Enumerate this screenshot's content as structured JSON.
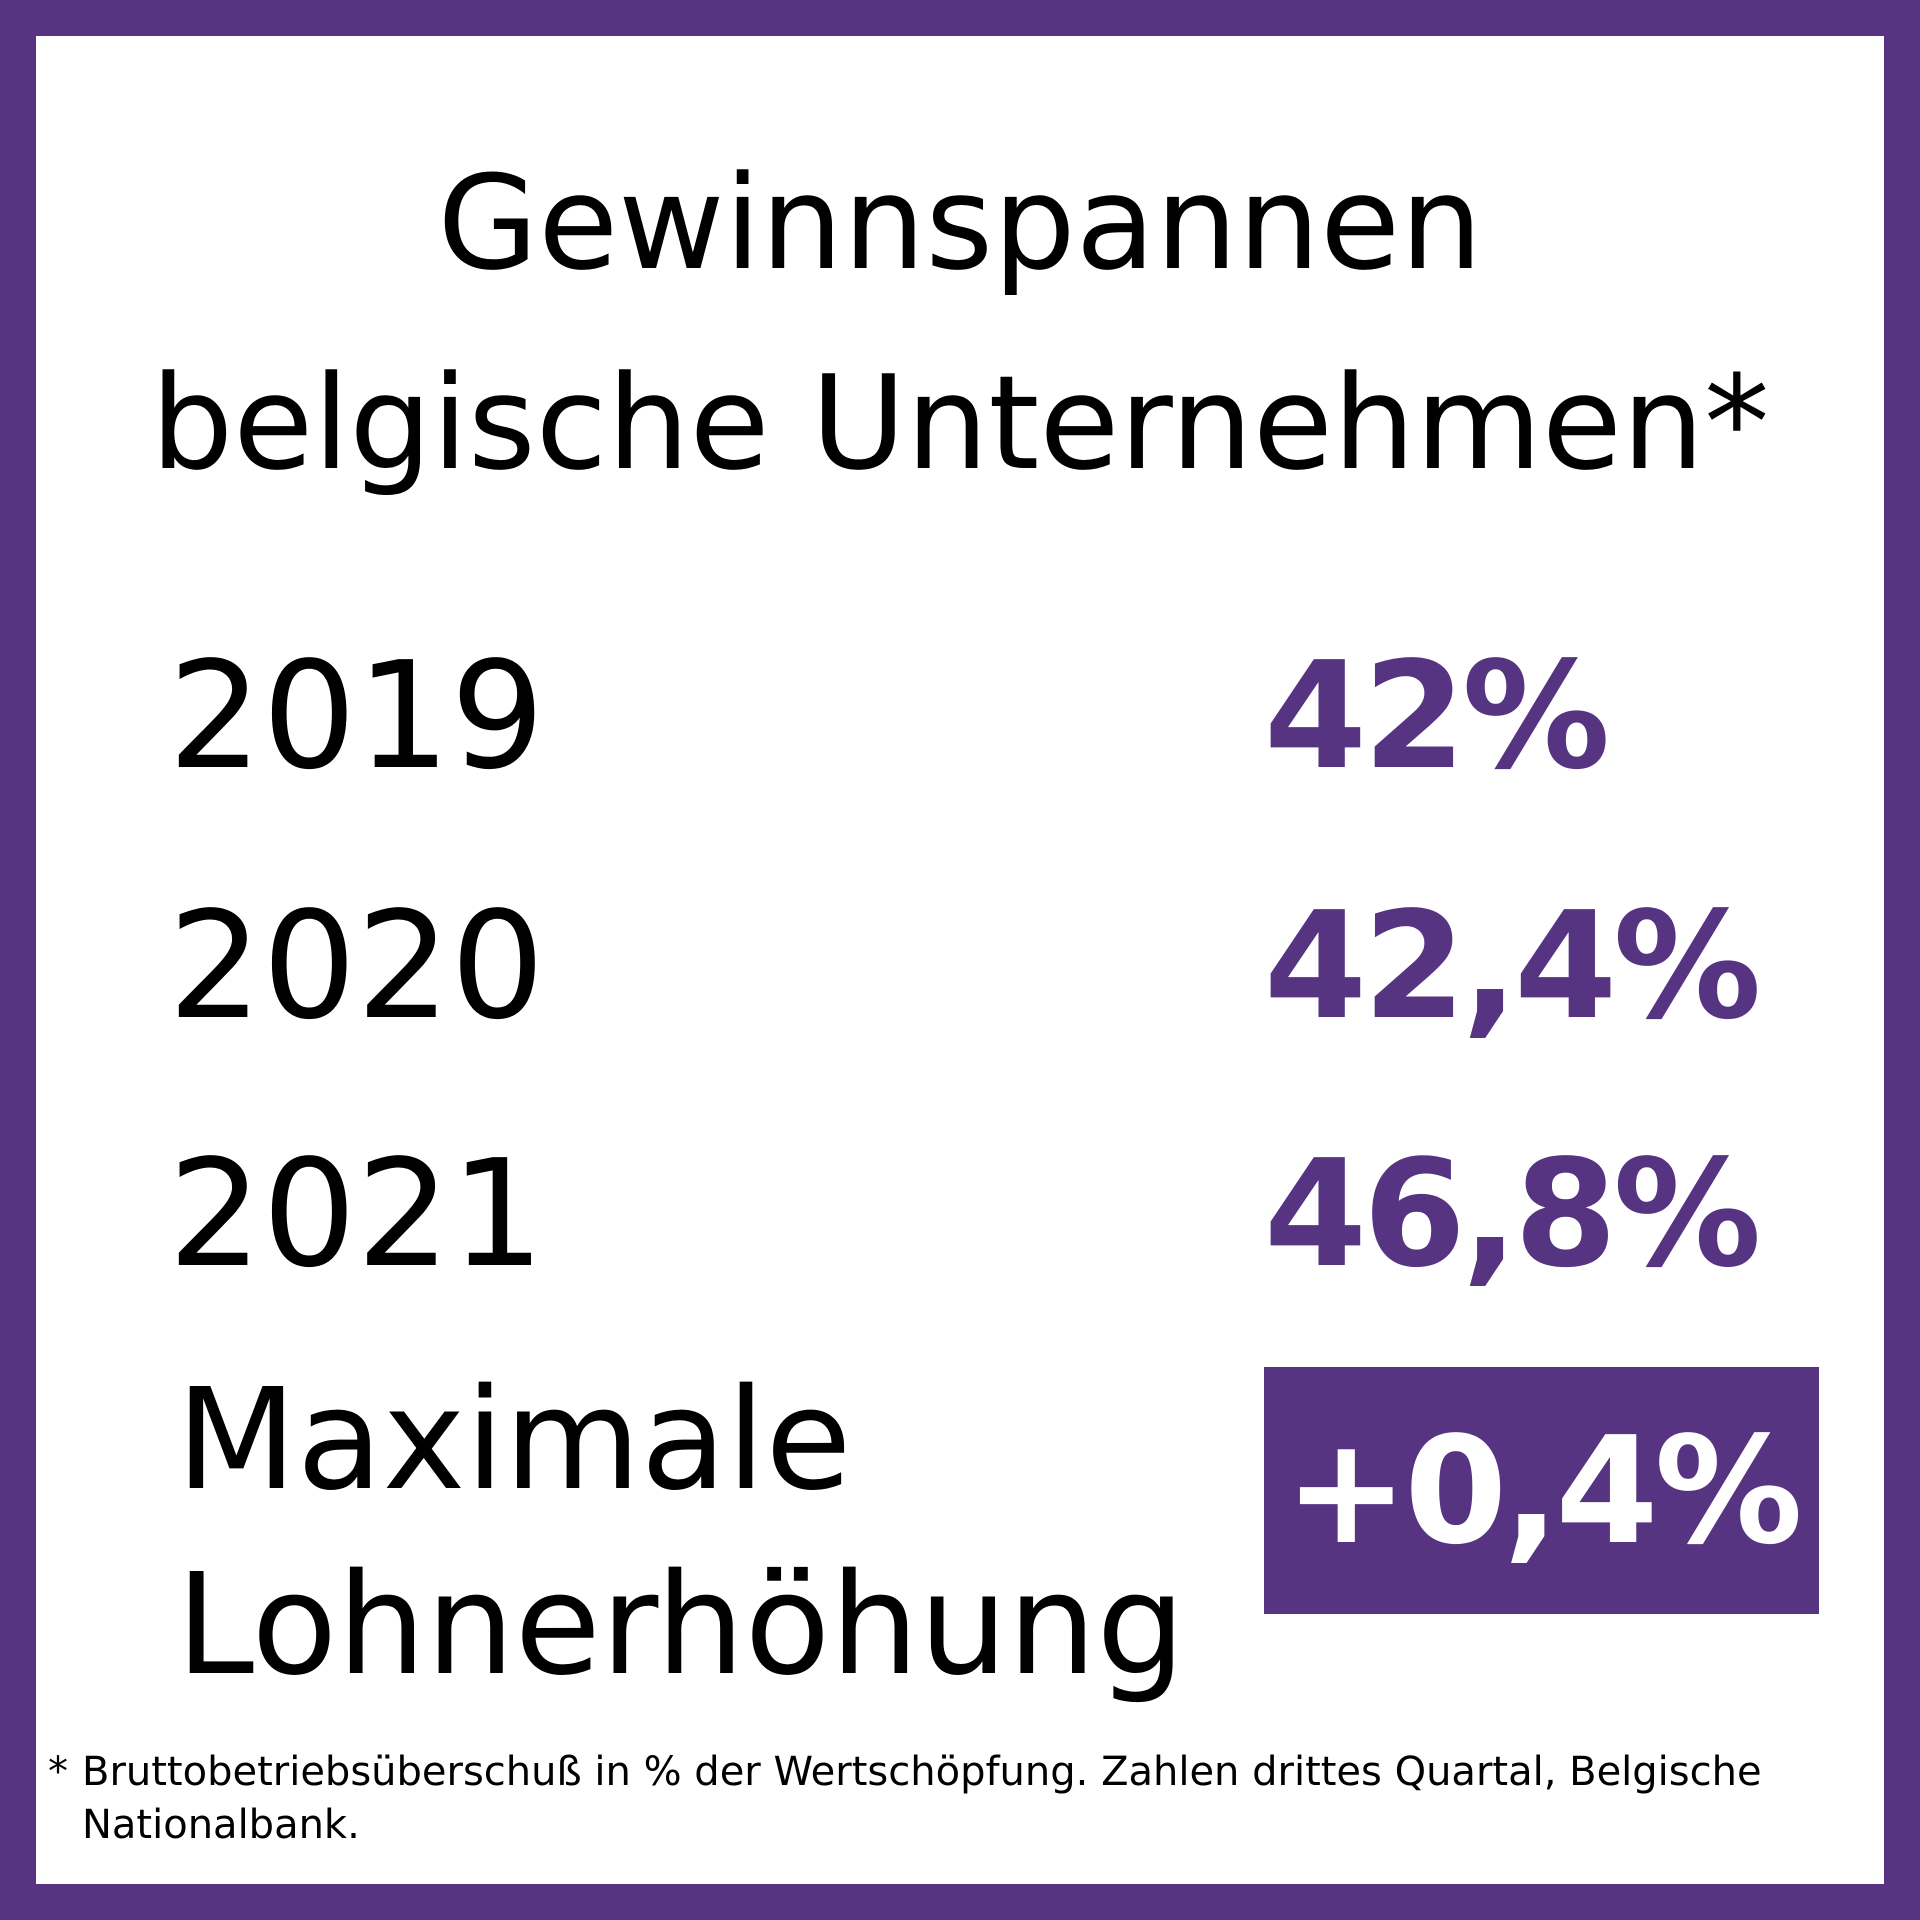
{
  "title": {
    "line1": "Gewinnspannen",
    "line2": "belgische Unternehmen*"
  },
  "rows": [
    {
      "year": "2019",
      "value": "42%"
    },
    {
      "year": "2020",
      "value": "42,4%"
    },
    {
      "year": "2021",
      "value": "46,8%"
    }
  ],
  "max_increase": {
    "label_line1": "Maximale",
    "label_line2": "Lohnerhöhung",
    "value": "+0,4%"
  },
  "footnote": {
    "mark": "*",
    "line1": "Bruttobetriebsüberschuß in % der Wertschöpfung. Zahlen drittes Quartal, Belgische",
    "line2": "Nationalbank."
  },
  "colors": {
    "accent": "#563482",
    "background": "#ffffff",
    "text": "#000000"
  }
}
